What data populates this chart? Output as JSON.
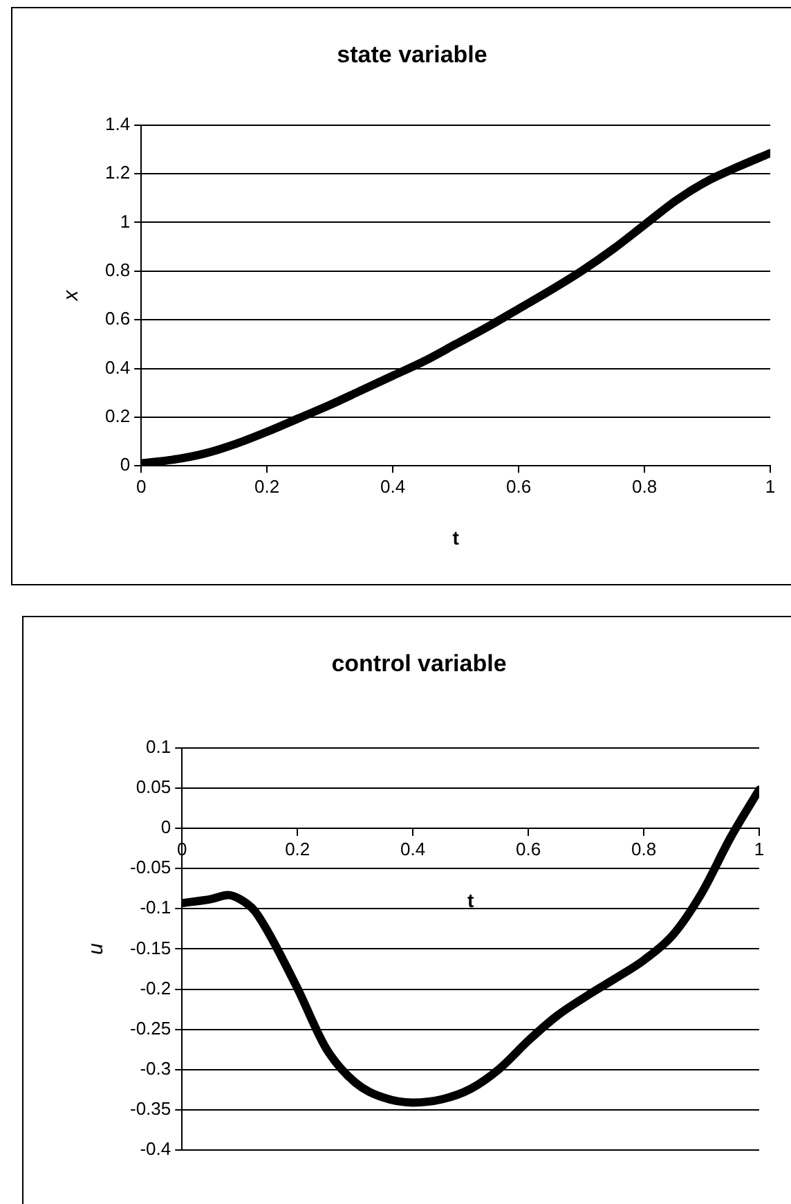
{
  "chart_data": [
    {
      "type": "line",
      "title": "state variable",
      "xlabel": "t",
      "ylabel": "x",
      "x": [
        0,
        0.05,
        0.1,
        0.15,
        0.2,
        0.25,
        0.3,
        0.35,
        0.4,
        0.45,
        0.5,
        0.55,
        0.6,
        0.65,
        0.7,
        0.75,
        0.8,
        0.85,
        0.9,
        0.95,
        1
      ],
      "series": [
        {
          "color": "#000000",
          "values": [
            0.01,
            0.025,
            0.05,
            0.09,
            0.14,
            0.195,
            0.25,
            0.31,
            0.37,
            0.43,
            0.5,
            0.57,
            0.645,
            0.72,
            0.8,
            0.89,
            0.99,
            1.09,
            1.17,
            1.23,
            1.285
          ]
        }
      ],
      "xlim": [
        0,
        1
      ],
      "xticks": [
        0,
        0.2,
        0.4,
        0.6,
        0.8,
        1
      ],
      "ylim": [
        0,
        1.4
      ],
      "yticks": [
        0,
        0.2,
        0.4,
        0.6,
        0.8,
        1,
        1.2,
        1.4
      ],
      "grid": "y",
      "line_style": "solid"
    },
    {
      "type": "line",
      "title": "control variable",
      "xlabel": "t",
      "ylabel": "u",
      "x": [
        0,
        0.05,
        0.08,
        0.1,
        0.125,
        0.15,
        0.2,
        0.25,
        0.3,
        0.35,
        0.4,
        0.45,
        0.5,
        0.55,
        0.6,
        0.65,
        0.7,
        0.75,
        0.8,
        0.85,
        0.9,
        0.95,
        1
      ],
      "series": [
        {
          "color": "#000000",
          "values": [
            -0.093,
            -0.088,
            -0.083,
            -0.088,
            -0.102,
            -0.13,
            -0.199,
            -0.274,
            -0.316,
            -0.335,
            -0.341,
            -0.337,
            -0.324,
            -0.299,
            -0.264,
            -0.233,
            -0.209,
            -0.187,
            -0.164,
            -0.133,
            -0.081,
            -0.012,
            0.048
          ]
        }
      ],
      "xlim": [
        0,
        1
      ],
      "xticks": [
        0,
        0.2,
        0.4,
        0.6,
        0.8,
        1
      ],
      "ylim": [
        -0.4,
        0.1
      ],
      "yticks": [
        -0.4,
        -0.35,
        -0.3,
        -0.25,
        -0.2,
        -0.15,
        -0.1,
        -0.05,
        0,
        0.05,
        0.1
      ],
      "grid": "y",
      "line_style": "solid"
    }
  ]
}
